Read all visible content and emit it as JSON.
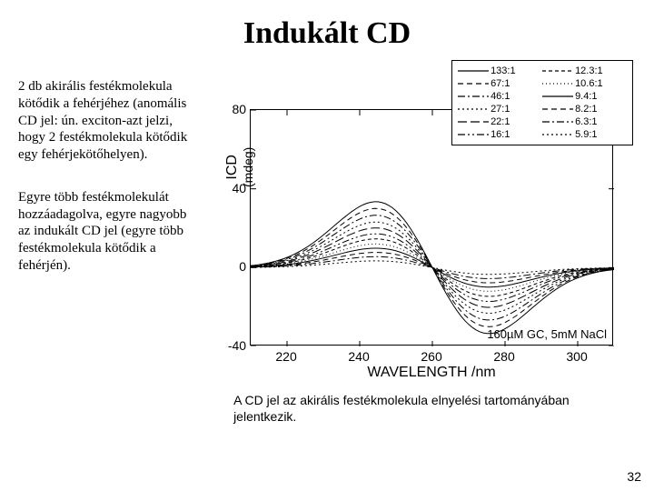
{
  "title": "Indukált CD",
  "para1": "2 db akirális festékmolekula kötődik a fehérjéhez (anomális CD jel: ún. exciton-azt jelzi, hogy 2 festékmolekula kötődik egy fehérjekötőhelyen).",
  "para2": "Egyre több festékmolekulát hozzáadagolva, egyre nagyobb az indukált CD jel (egyre több festékmolekula kötődik a fehérjén).",
  "caption": "A CD jel az akirális festékmolekula elnyelési tartományában jelentkezik.",
  "pagenum": "32",
  "chart": {
    "type": "line",
    "xlim": [
      210,
      310
    ],
    "ylim": [
      -40,
      80
    ],
    "xticks": [
      220,
      240,
      260,
      280,
      300
    ],
    "yticks": [
      -40,
      0,
      40,
      80
    ],
    "xlabel": "WAVELENGTH /nm",
    "ylabel_main": "ICD",
    "ylabel_sub": "(mdeg)",
    "annotation": "160µM GC, 5mM NaCl",
    "legend": [
      {
        "label": "133:1",
        "dash": "solid"
      },
      {
        "label": "67:1",
        "dash": "dash"
      },
      {
        "label": "46:1",
        "dash": "dashdot"
      },
      {
        "label": "27:1",
        "dash": "dot"
      },
      {
        "label": "22:1",
        "dash": "longdash"
      },
      {
        "label": "16:1",
        "dash": "dashdotdot"
      },
      {
        "label": "12.3:1",
        "dash": "shortdash"
      },
      {
        "label": "10.6:1",
        "dash": "shortdot"
      },
      {
        "label": "9.4:1",
        "dash": "solid"
      },
      {
        "label": "8.2:1",
        "dash": "dash"
      },
      {
        "label": "6.3:1",
        "dash": "dashdot"
      },
      {
        "label": "5.9:1",
        "dash": "dot"
      }
    ],
    "series_amplitudes": [
      78,
      70,
      62,
      54,
      47,
      40,
      34,
      28,
      23,
      18,
      13,
      8
    ],
    "colors": {
      "line": "#000000",
      "frame": "#000000",
      "background": "#ffffff"
    },
    "line_width": 1,
    "title_fontsize": 34,
    "label_fontsize": 16,
    "tick_fontsize": 14,
    "legend_fontsize": 11
  }
}
